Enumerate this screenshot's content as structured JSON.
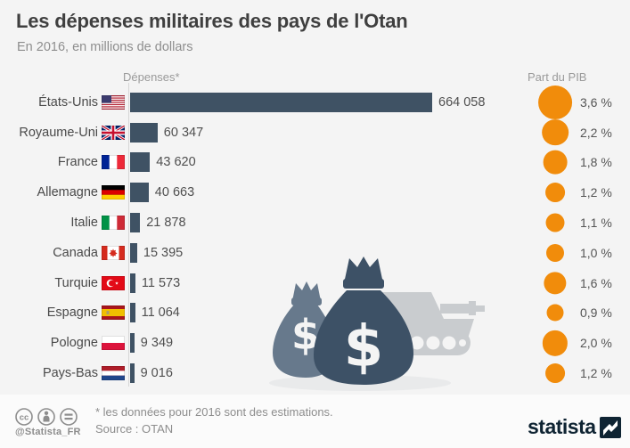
{
  "header": {
    "title": "Les dépenses militaires des pays de l'Otan",
    "subtitle": "En 2016, en millions de dollars",
    "col_depenses": "Dépenses*",
    "col_pib": "Part du PIB"
  },
  "chart_data": {
    "type": "bar",
    "orientation": "horizontal",
    "title": "Les dépenses militaires des pays de l'Otan",
    "subtitle": "En 2016, en millions de dollars",
    "unit": "millions de dollars",
    "grid": false,
    "xlim": [
      0,
      664058
    ],
    "categories": [
      "États-Unis",
      "Royaume-Uni",
      "France",
      "Allemagne",
      "Italie",
      "Canada",
      "Turquie",
      "Espagne",
      "Pologne",
      "Pays-Bas"
    ],
    "flags": [
      "us",
      "gb",
      "fr",
      "de",
      "it",
      "ca",
      "tr",
      "es",
      "pl",
      "nl"
    ],
    "series": [
      {
        "name": "Dépenses* (millions de dollars)",
        "values": [
          664058,
          60347,
          43620,
          40663,
          21878,
          15395,
          11573,
          11064,
          9349,
          9016
        ],
        "labels": [
          "664 058",
          "60 347",
          "43 620",
          "40 663",
          "21 878",
          "15 395",
          "11 573",
          "11 064",
          "9 349",
          "9 016"
        ]
      },
      {
        "name": "Part du PIB (%)",
        "values": [
          3.6,
          2.2,
          1.8,
          1.2,
          1.1,
          1.0,
          1.6,
          0.9,
          2.0,
          1.2
        ],
        "labels": [
          "3,6 %",
          "2,2 %",
          "1,8 %",
          "1,2 %",
          "1,1 %",
          "1,0 %",
          "1,6 %",
          "0,9 %",
          "2,0 %",
          "1,2 %"
        ]
      }
    ]
  },
  "illustration_icons": [
    "money-bag-icon",
    "money-bag-small-icon",
    "tank-icon"
  ],
  "footer": {
    "license_icons": [
      "cc-icon",
      "attribution-icon",
      "equal-icon"
    ],
    "handle": "@Statista_FR",
    "note": "* les données pour 2016 sont des estimations.",
    "source": "Source : OTAN",
    "brand": "statista"
  },
  "colors": {
    "bar": "#3f5264",
    "circle": "#f18c0b",
    "bg": "#f4f4f4",
    "footer_bg": "#fbfbfb",
    "brand": "#0f2433",
    "bag_dark": "#3d5166",
    "bag_light": "#67798c",
    "tank": "#c9cccf"
  }
}
